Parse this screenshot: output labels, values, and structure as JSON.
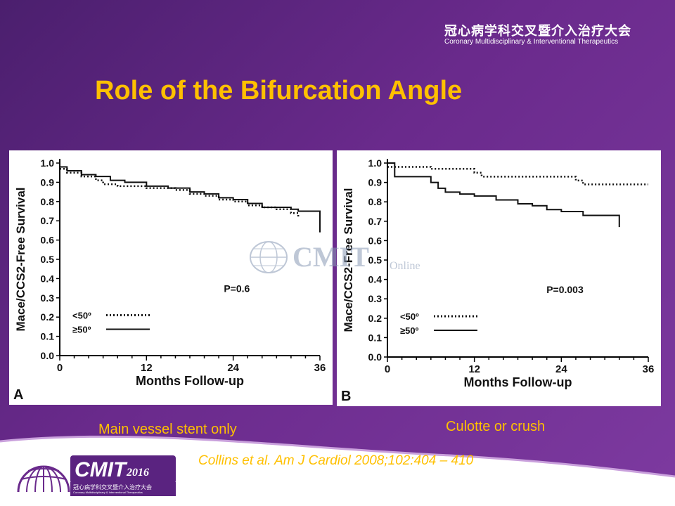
{
  "header": {
    "org_cn": "冠心病学科交叉暨介入治疗大会",
    "org_en": "Coronary Multidisciplinary & Interventional Therapeutics"
  },
  "slide_title": "Role of the Bifurcation Angle",
  "watermark": {
    "text": "CMIT",
    "suffix": "Online"
  },
  "captions": {
    "left": "Main vessel stent only",
    "right": "Culotte or crush",
    "citation": "Collins et al. Am J Cardiol 2008;102:404 – 410"
  },
  "logo": {
    "text": "CMIT",
    "year": "2016",
    "cn": "冠心病学科交叉暨介入治疗大会",
    "en": "Coronary Multidisciplinary & Interventional Therapeutics"
  },
  "colors": {
    "background": "#6a2a8c",
    "accent": "#ffc000",
    "curve": "#111111"
  },
  "chart_data": [
    {
      "type": "line",
      "panel_label": "A",
      "xlabel": "Months Follow-up",
      "ylabel": "Mace/CCS2-Free Survival",
      "xlim": [
        0,
        36
      ],
      "ylim": [
        0,
        1
      ],
      "xticks": [
        0,
        12,
        24,
        36
      ],
      "yticks": [
        "0.0",
        "0.1",
        "0.2",
        "0.3",
        "0.4",
        "0.5",
        "0.6",
        "0.7",
        "0.8",
        "0.9",
        "1.0"
      ],
      "annotation": "P=0.6",
      "legend_position": "bottom-left",
      "series": [
        {
          "name": "<50º",
          "style": "dotted",
          "x": [
            0,
            1,
            3,
            5,
            6,
            8,
            12,
            16,
            18,
            20,
            22,
            24,
            26,
            28,
            30,
            32,
            33
          ],
          "y": [
            0.97,
            0.95,
            0.93,
            0.91,
            0.89,
            0.88,
            0.87,
            0.86,
            0.84,
            0.83,
            0.81,
            0.8,
            0.78,
            0.77,
            0.76,
            0.74,
            0.72
          ]
        },
        {
          "name": "≥50º",
          "style": "solid",
          "x": [
            0,
            1,
            3,
            5,
            7,
            9,
            12,
            15,
            18,
            20,
            22,
            24,
            26,
            28,
            30,
            32,
            33,
            36,
            36
          ],
          "y": [
            0.98,
            0.96,
            0.94,
            0.93,
            0.91,
            0.9,
            0.88,
            0.87,
            0.85,
            0.84,
            0.82,
            0.81,
            0.79,
            0.77,
            0.77,
            0.76,
            0.75,
            0.71,
            0.64
          ]
        }
      ]
    },
    {
      "type": "line",
      "panel_label": "B",
      "xlabel": "Months Follow-up",
      "ylabel": "Mace/CCS2-Free Survival",
      "xlim": [
        0,
        36
      ],
      "ylim": [
        0,
        1
      ],
      "xticks": [
        0,
        12,
        24,
        36
      ],
      "yticks": [
        "0.0",
        "0.1",
        "0.2",
        "0.3",
        "0.4",
        "0.5",
        "0.6",
        "0.7",
        "0.8",
        "0.9",
        "1.0"
      ],
      "annotation": "P=0.003",
      "legend_position": "bottom-left",
      "series": [
        {
          "name": "<50º",
          "style": "dotted",
          "x": [
            0,
            6,
            12,
            13,
            24,
            26,
            27,
            36
          ],
          "y": [
            0.98,
            0.97,
            0.95,
            0.93,
            0.93,
            0.91,
            0.89,
            0.89
          ]
        },
        {
          "name": "≥50º",
          "style": "solid",
          "x": [
            0,
            1,
            5,
            6,
            7,
            8,
            10,
            12,
            15,
            18,
            20,
            22,
            24,
            27,
            30,
            32,
            32
          ],
          "y": [
            1.0,
            0.93,
            0.93,
            0.9,
            0.87,
            0.85,
            0.84,
            0.83,
            0.81,
            0.79,
            0.78,
            0.76,
            0.75,
            0.73,
            0.73,
            0.73,
            0.67
          ]
        }
      ]
    }
  ]
}
